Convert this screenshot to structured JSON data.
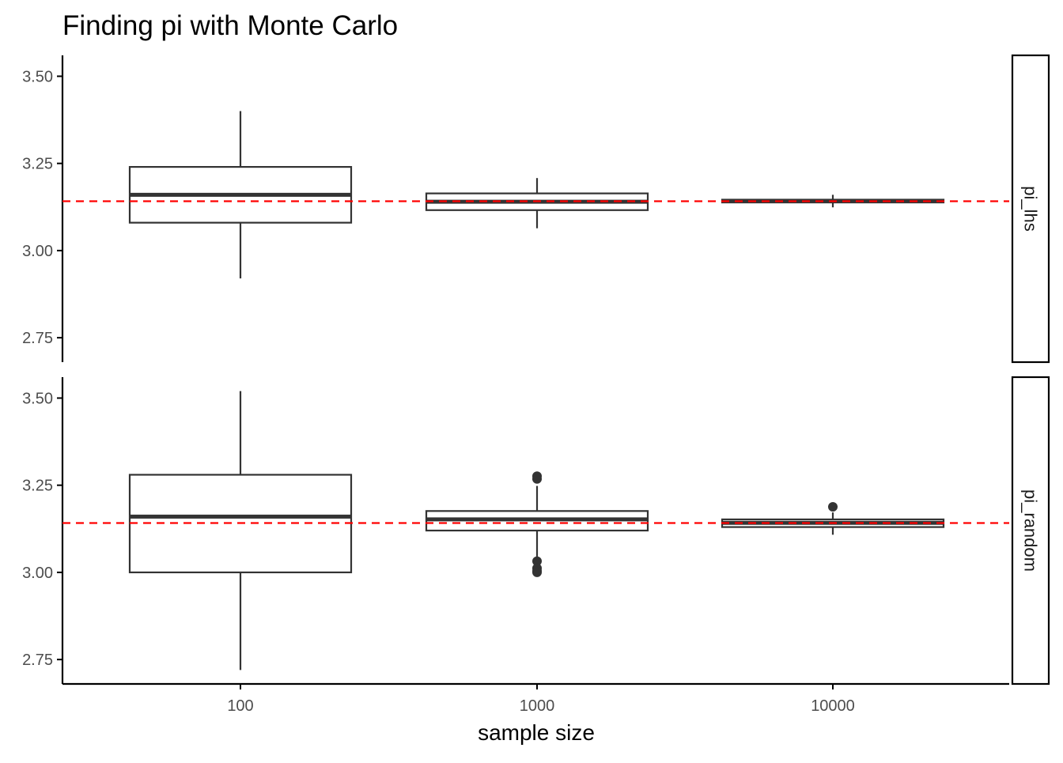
{
  "chart_data": {
    "type": "box",
    "title": "Finding pi with Monte Carlo",
    "xlabel": "sample size",
    "ylabel": "",
    "categories": [
      "100",
      "1000",
      "10000"
    ],
    "ylim": [
      2.68,
      3.56
    ],
    "yticks": [
      "2.75",
      "3.00",
      "3.25",
      "3.50"
    ],
    "reference_line": {
      "y": 3.14159,
      "color": "#ff0000",
      "style": "dashed"
    },
    "colors": {
      "box_stroke": "#333333",
      "box_fill": "#ffffff",
      "axis": "#000000",
      "strip_stroke": "#000000"
    },
    "grid": false,
    "panels": [
      {
        "strip_label": "pi_lhs",
        "boxes": [
          {
            "category": "100",
            "min": 2.92,
            "q1": 3.08,
            "median": 3.16,
            "q3": 3.24,
            "max": 3.4,
            "outliers": []
          },
          {
            "category": "1000",
            "min": 3.064,
            "q1": 3.116,
            "median": 3.14,
            "q3": 3.164,
            "max": 3.208,
            "outliers": []
          },
          {
            "category": "10000",
            "min": 3.124,
            "q1": 3.138,
            "median": 3.142,
            "q3": 3.146,
            "max": 3.16,
            "outliers": []
          }
        ]
      },
      {
        "strip_label": "pi_random",
        "boxes": [
          {
            "category": "100",
            "min": 2.72,
            "q1": 3.0,
            "median": 3.16,
            "q3": 3.28,
            "max": 3.52,
            "outliers": []
          },
          {
            "category": "1000",
            "min": 3.04,
            "q1": 3.12,
            "median": 3.152,
            "q3": 3.176,
            "max": 3.248,
            "outliers": [
              3.276,
              3.268,
              3.032,
              3.012,
              3.004,
              3.0
            ]
          },
          {
            "category": "10000",
            "min": 3.108,
            "q1": 3.13,
            "median": 3.142,
            "q3": 3.152,
            "max": 3.172,
            "outliers": [
              3.188
            ]
          }
        ]
      }
    ]
  }
}
